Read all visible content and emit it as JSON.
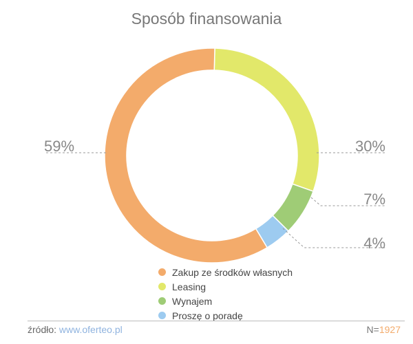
{
  "chart_data": {
    "type": "pie",
    "donut": true,
    "title": "Sposób finansowania",
    "slices": [
      {
        "label": "Leasing",
        "value": 30,
        "display": "30%",
        "color": "#e2e86a"
      },
      {
        "label": "Wynajem",
        "value": 7,
        "display": "7%",
        "color": "#9fcc76"
      },
      {
        "label": "Proszę o poradę",
        "value": 4,
        "display": "4%",
        "color": "#9dcbf0"
      },
      {
        "label": "Zakup ze środków własnych",
        "value": 59,
        "display": "59%",
        "color": "#f3ab6b"
      }
    ],
    "legend": {
      "placement": "bottom",
      "items": [
        {
          "label": "Zakup ze środków własnych",
          "color": "#f3ab6b"
        },
        {
          "label": "Leasing",
          "color": "#e2e86a"
        },
        {
          "label": "Wynajem",
          "color": "#9fcc76"
        },
        {
          "label": "Proszę o poradę",
          "color": "#9dcbf0"
        }
      ]
    }
  },
  "footer": {
    "source_label": "źródło:",
    "source_link": "www.oferteo.pl",
    "n_label": "N=",
    "n_value": "1927"
  }
}
